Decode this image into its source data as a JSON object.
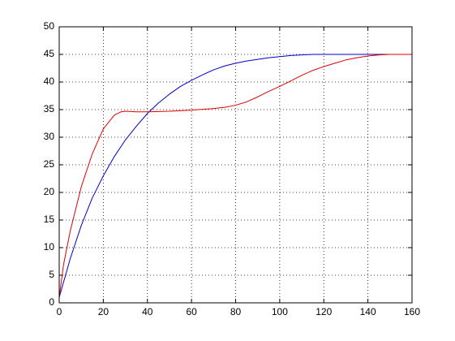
{
  "chart_data": {
    "type": "line",
    "xlim": [
      0,
      160
    ],
    "xticks": [
      0,
      20,
      40,
      60,
      80,
      100,
      120,
      140,
      160
    ],
    "ylim": [
      0,
      50
    ],
    "yticks": [
      0,
      5,
      10,
      15,
      20,
      25,
      30,
      35,
      40,
      45,
      50
    ],
    "grid": true,
    "series": [
      {
        "color": "#0000c8",
        "x": [
          0,
          5,
          10,
          15,
          20,
          25,
          30,
          35,
          40,
          45,
          50,
          55,
          60,
          65,
          70,
          75,
          80,
          85,
          90,
          95,
          100,
          105,
          110,
          115,
          120,
          130,
          140,
          150,
          160
        ],
        "values": [
          1,
          8,
          14,
          19,
          23,
          26.5,
          29.5,
          32,
          34.3,
          36.2,
          37.8,
          39.2,
          40.3,
          41.3,
          42.2,
          42.9,
          43.4,
          43.8,
          44.1,
          44.4,
          44.6,
          44.8,
          44.9,
          45,
          45,
          45,
          45,
          45,
          45
        ]
      },
      {
        "color": "#e00000",
        "x": [
          0,
          2,
          5,
          10,
          15,
          20,
          25,
          28,
          30,
          35,
          40,
          50,
          60,
          70,
          75,
          80,
          85,
          90,
          95,
          100,
          105,
          110,
          115,
          120,
          125,
          130,
          135,
          140,
          145,
          150,
          160
        ],
        "values": [
          1,
          7,
          13,
          21,
          27,
          31.5,
          34,
          34.6,
          34.7,
          34.6,
          34.6,
          34.7,
          34.9,
          35.2,
          35.4,
          35.8,
          36.4,
          37.3,
          38.3,
          39.2,
          40.2,
          41.2,
          42.1,
          42.8,
          43.4,
          44,
          44.4,
          44.7,
          44.9,
          45,
          45
        ]
      }
    ]
  }
}
